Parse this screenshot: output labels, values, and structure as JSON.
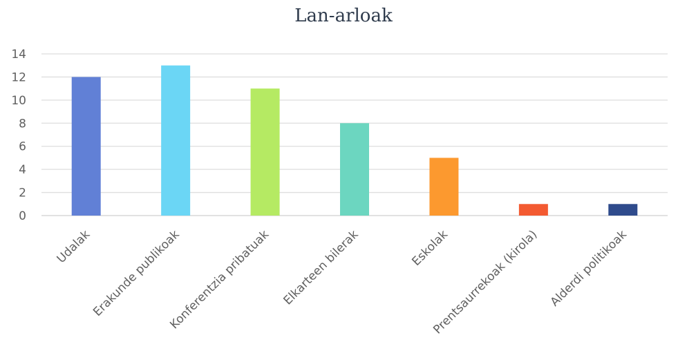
{
  "chart_data": {
    "type": "bar",
    "title": "Lan-arloak",
    "categories": [
      "Udalak",
      "Erakunde publikoak",
      "Konferentzia pribatuak",
      "Elkarteen bilerak",
      "Eskolak",
      "Prentsaurrekoak (kirola)",
      "Alderdi politikoak"
    ],
    "values": [
      12,
      13,
      11,
      8,
      5,
      1,
      1
    ],
    "colors": [
      "#6180d6",
      "#6bd6f5",
      "#b5ea63",
      "#6cd6c0",
      "#fc992f",
      "#f35a31",
      "#2f4b8c"
    ],
    "ylim": [
      0,
      14
    ],
    "yticks": [
      "0",
      "2",
      "4",
      "6",
      "8",
      "10",
      "12",
      "14"
    ],
    "grid": true,
    "legend": "none"
  }
}
